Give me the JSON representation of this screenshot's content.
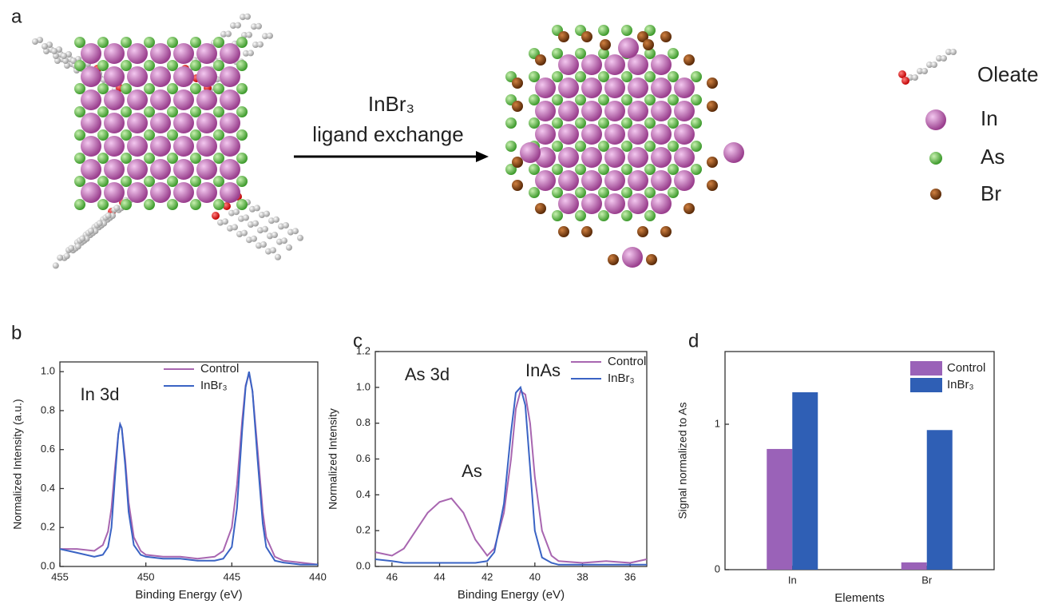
{
  "panel_a": {
    "label": "a",
    "reagent": "InBr₃",
    "arrow_label": "ligand exchange",
    "legend": [
      "Oleate",
      "In",
      "As",
      "Br"
    ]
  },
  "chart_data": [
    {
      "type": "line",
      "panel_label": "b",
      "annotations": [
        "In 3d"
      ],
      "xlabel": "Binding Energy (eV)",
      "ylabel": "Normalized Intensity (a.u.)",
      "x": [
        455,
        454,
        453,
        452.5,
        452.2,
        452,
        451.8,
        451.6,
        451.5,
        451.4,
        451.2,
        451,
        450.7,
        450.3,
        450,
        449,
        448,
        447,
        446,
        445.5,
        445,
        444.7,
        444.4,
        444.2,
        444,
        443.8,
        443.5,
        443.2,
        443,
        442.5,
        442,
        441,
        440
      ],
      "xlim": [
        455,
        440
      ],
      "xticks": [
        455,
        450,
        445,
        440
      ],
      "ylim": [
        0,
        1.05
      ],
      "yticks": [
        {
          "value": 0,
          "label": "0.0"
        },
        0.2,
        0.4,
        0.6,
        0.8,
        {
          "value": 1,
          "label": "1.0"
        }
      ],
      "legend": "top-center",
      "series": [
        {
          "name": "Control",
          "color": "#a866b0",
          "values": [
            0.09,
            0.09,
            0.08,
            0.11,
            0.18,
            0.3,
            0.5,
            0.68,
            0.73,
            0.71,
            0.55,
            0.33,
            0.15,
            0.08,
            0.06,
            0.05,
            0.05,
            0.04,
            0.05,
            0.08,
            0.2,
            0.42,
            0.75,
            0.93,
            0.99,
            0.9,
            0.6,
            0.28,
            0.15,
            0.05,
            0.03,
            0.02,
            0.01
          ]
        },
        {
          "name": "InBr₃",
          "color": "#3a63c4",
          "values": [
            0.09,
            0.07,
            0.05,
            0.06,
            0.1,
            0.2,
            0.45,
            0.68,
            0.73,
            0.71,
            0.52,
            0.28,
            0.11,
            0.06,
            0.05,
            0.04,
            0.04,
            0.03,
            0.03,
            0.04,
            0.1,
            0.3,
            0.7,
            0.92,
            1.0,
            0.9,
            0.55,
            0.22,
            0.1,
            0.03,
            0.02,
            0.01,
            0.01
          ]
        }
      ]
    },
    {
      "type": "line",
      "panel_label": "c",
      "annotations": [
        "As 3d",
        "InAs",
        "As"
      ],
      "xlabel": "Binding Energy (eV)",
      "ylabel": "Normalized Intensity",
      "x": [
        46.7,
        46,
        45.5,
        45,
        44.5,
        44,
        43.5,
        43,
        42.5,
        42,
        41.7,
        41.3,
        41,
        40.8,
        40.6,
        40.4,
        40.2,
        40,
        39.7,
        39.3,
        39,
        38,
        37,
        36,
        35.3
      ],
      "xlim": [
        46.7,
        35.3
      ],
      "xticks": [
        46,
        44,
        42,
        40,
        38,
        36
      ],
      "ylim": [
        0,
        1.2
      ],
      "yticks": [
        {
          "value": 0,
          "label": "0.0"
        },
        0.2,
        0.4,
        0.6,
        0.8,
        {
          "value": 1,
          "label": "1.0"
        },
        1.2
      ],
      "legend": "top-right",
      "series": [
        {
          "name": "Control",
          "color": "#a866b0",
          "values": [
            0.08,
            0.06,
            0.1,
            0.2,
            0.3,
            0.36,
            0.38,
            0.3,
            0.15,
            0.06,
            0.1,
            0.3,
            0.6,
            0.88,
            0.98,
            0.96,
            0.8,
            0.5,
            0.2,
            0.06,
            0.03,
            0.02,
            0.03,
            0.02,
            0.04
          ]
        },
        {
          "name": "InBr₃",
          "color": "#3a63c4",
          "values": [
            0.04,
            0.03,
            0.02,
            0.02,
            0.02,
            0.02,
            0.02,
            0.02,
            0.02,
            0.03,
            0.08,
            0.35,
            0.75,
            0.97,
            1.0,
            0.9,
            0.55,
            0.2,
            0.05,
            0.02,
            0.01,
            0.01,
            0.01,
            0.01,
            0.01
          ]
        }
      ]
    },
    {
      "type": "bar",
      "panel_label": "d",
      "xlabel": "Elements",
      "ylabel": "Signal normalized to As",
      "categories": [
        "In",
        "Br"
      ],
      "ylim": [
        0,
        1.5
      ],
      "yticks": [
        0,
        1
      ],
      "legend": "top-right",
      "series": [
        {
          "name": "Control",
          "color": "#9a62b8",
          "values": [
            0.83,
            0.05
          ]
        },
        {
          "name": "InBr₃",
          "color": "#2f5fb5",
          "values": [
            1.22,
            0.96
          ]
        }
      ]
    }
  ]
}
